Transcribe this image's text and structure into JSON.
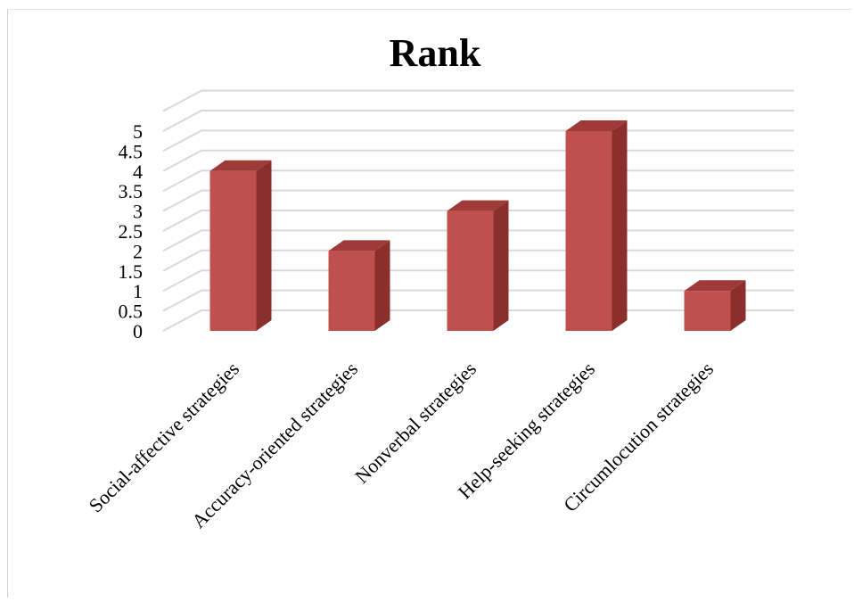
{
  "chart_data": {
    "type": "bar",
    "title": "Rank",
    "xlabel": "",
    "ylabel": "",
    "categories": [
      "Social-affective strategies",
      "Accuracy-oriented strategies",
      "Nonverbal strategies",
      "Help-seeking strategies",
      "Circumlocution strategies"
    ],
    "values": [
      4,
      2,
      3,
      5,
      1
    ],
    "ylim": [
      0,
      5
    ],
    "yticks": [
      "0",
      "0.5",
      "1",
      "1.5",
      "2",
      "2.5",
      "3",
      "3.5",
      "4",
      "4.5",
      "5"
    ],
    "grid": true,
    "style": "3d-column",
    "colors": {
      "bar_front": "#c0504d",
      "bar_side": "#8b2f2d",
      "bar_top": "#9e3a37",
      "grid": "#d9d9d9"
    }
  }
}
